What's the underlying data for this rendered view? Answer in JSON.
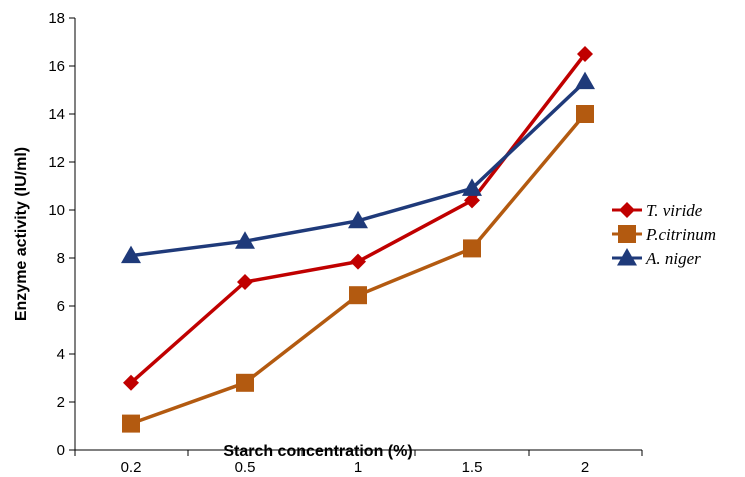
{
  "chart_data": {
    "type": "line",
    "title": "",
    "xlabel": "Starch concentration (%)",
    "ylabel": "Enzyme activity (IU/ml)",
    "categories": [
      "0.2",
      "0.5",
      "1",
      "1.5",
      "2"
    ],
    "ylim": [
      0,
      18
    ],
    "yticks": [
      0,
      2,
      4,
      6,
      8,
      10,
      12,
      14,
      16,
      18
    ],
    "grid": false,
    "legend_position": "right",
    "series": [
      {
        "name": "T. viride",
        "values": [
          2.8,
          7.0,
          7.85,
          10.4,
          16.5
        ],
        "color": "#C00000",
        "marker": "diamond"
      },
      {
        "name": "P.citrinum",
        "values": [
          1.1,
          2.8,
          6.45,
          8.4,
          14.0
        ],
        "color": "#B35A10",
        "marker": "square"
      },
      {
        "name": "A. niger",
        "values": [
          8.1,
          8.7,
          9.55,
          10.9,
          15.35
        ],
        "color": "#1F3A7A",
        "marker": "triangle"
      }
    ]
  }
}
